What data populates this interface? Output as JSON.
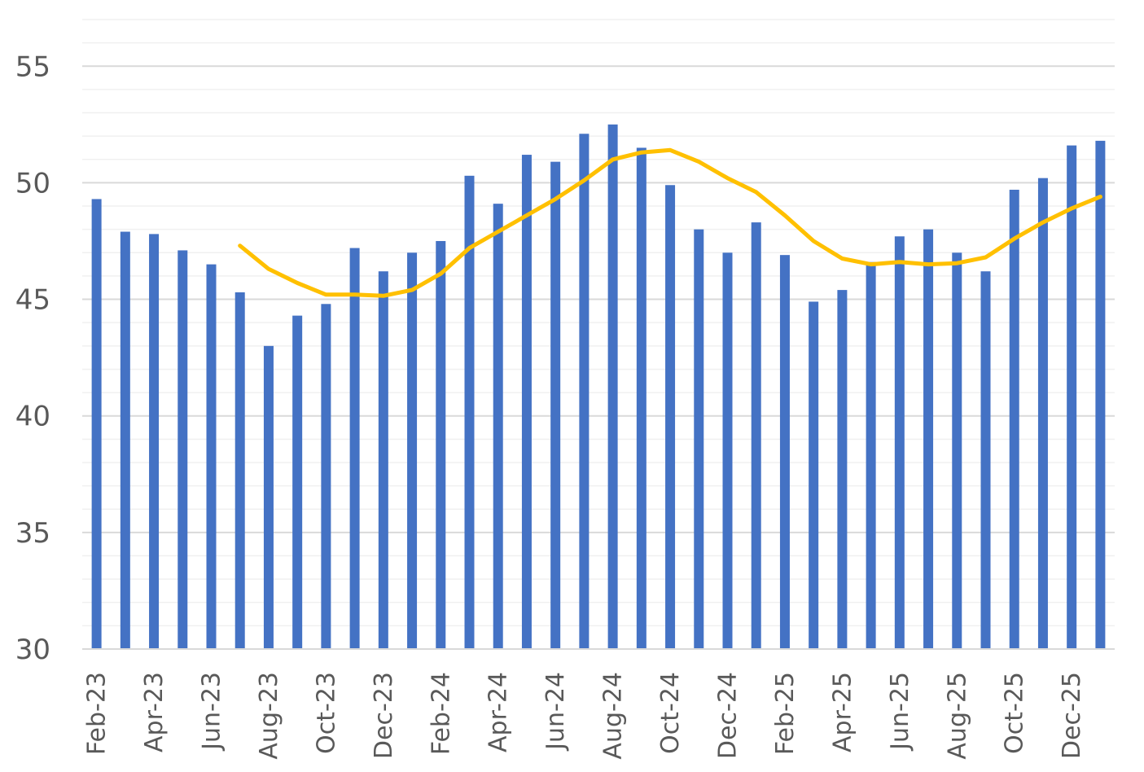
{
  "chart_data": {
    "type": "bar",
    "categories": [
      "Feb-23",
      "Mar-23",
      "Apr-23",
      "May-23",
      "Jun-23",
      "Jul-23",
      "Aug-23",
      "Sep-23",
      "Oct-23",
      "Nov-23",
      "Dec-23",
      "Jan-24",
      "Feb-24",
      "Mar-24",
      "Apr-24",
      "May-24",
      "Jun-24",
      "Jul-24",
      "Aug-24",
      "Sep-24",
      "Oct-24",
      "Nov-24",
      "Dec-24",
      "Jan-25",
      "Feb-25",
      "Mar-25",
      "Apr-25",
      "May-25",
      "Jun-25",
      "Jul-25",
      "Aug-25",
      "Sep-25",
      "Oct-25",
      "Nov-25",
      "Dec-25",
      "Jan-26"
    ],
    "x_tick_labels": [
      "Feb-23",
      "Apr-23",
      "Jun-23",
      "Aug-23",
      "Oct-23",
      "Dec-23",
      "Feb-24",
      "Apr-24",
      "Jun-24",
      "Aug-24",
      "Oct-24",
      "Dec-24",
      "Feb-25",
      "Apr-25",
      "Jun-25",
      "Aug-25",
      "Oct-25",
      "Dec-25"
    ],
    "series": [
      {
        "type": "bar",
        "color": "#4472C4",
        "values": [
          49.3,
          47.9,
          47.8,
          47.1,
          46.5,
          45.3,
          43.0,
          44.3,
          44.8,
          47.2,
          46.2,
          47.0,
          47.5,
          50.3,
          49.1,
          51.2,
          50.9,
          52.1,
          52.5,
          51.5,
          49.9,
          48.0,
          47.0,
          48.3,
          46.9,
          44.9,
          45.4,
          46.6,
          47.7,
          48.0,
          47.0,
          46.2,
          49.7,
          50.2,
          51.6,
          51.8
        ]
      },
      {
        "type": "line",
        "color": "#FFC000",
        "values": [
          null,
          null,
          null,
          null,
          null,
          47.3,
          46.3,
          45.7,
          45.2,
          45.2,
          45.15,
          45.4,
          46.1,
          47.2,
          47.9,
          48.6,
          49.3,
          50.1,
          51.0,
          51.3,
          51.4,
          50.9,
          50.2,
          49.6,
          48.6,
          47.5,
          46.75,
          46.5,
          46.6,
          46.5,
          46.55,
          46.8,
          47.6,
          48.3,
          48.9,
          49.4
        ]
      }
    ],
    "y_ticks": [
      "30",
      "35",
      "40",
      "45",
      "50",
      "55"
    ],
    "ylim": [
      30,
      57
    ],
    "ymajor": 5,
    "yminor": 1,
    "grid": true,
    "legend": "none"
  }
}
